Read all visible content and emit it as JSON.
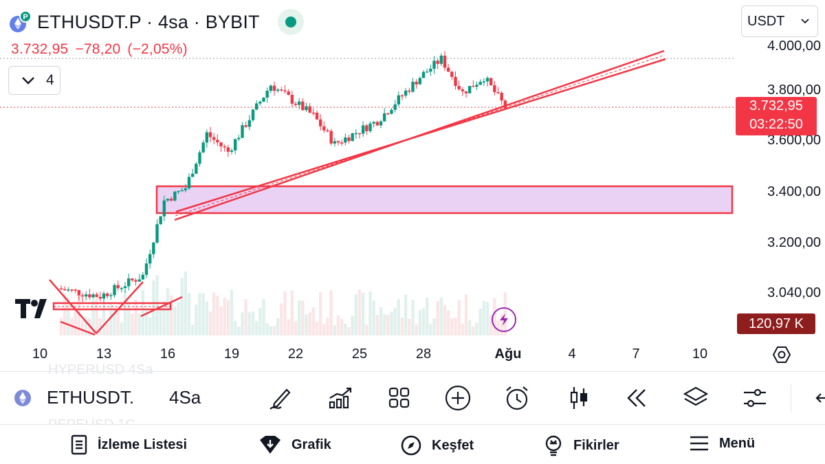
{
  "header": {
    "symbol": "ETHUSDT.P",
    "timeframe": "4sa",
    "exchange": "BYBIT",
    "separator": "·",
    "symbol_icon": "ethereum-icon",
    "status": "market-open-indicator"
  },
  "quote": {
    "last": "3.732,95",
    "change": "−78,20",
    "change_pct": "(−2,05%)",
    "color": "#f23645"
  },
  "indicators_toggle": {
    "count": "4",
    "icon": "chevron-down-icon"
  },
  "currency_select": {
    "value": "USDT",
    "icon": "chevron-down-icon"
  },
  "price_scale": {
    "labels": [
      "4.000,00",
      "3.800,00",
      "3.600,00",
      "3.400,00",
      "3.200,00",
      "3.040,00"
    ],
    "last_price": "3.732,95",
    "countdown": "03:22:50",
    "volume_value": "120,97 K"
  },
  "time_scale": {
    "labels": [
      "10",
      "13",
      "16",
      "19",
      "22",
      "25",
      "28",
      "Ağu",
      "4",
      "7",
      "10"
    ]
  },
  "chart_data": {
    "type": "candlestick",
    "symbol": "ETHUSDT.P",
    "timeframe": "4sa",
    "currency": "USDT",
    "last_price": 3732.95,
    "change": -78.2,
    "change_pct": -2.05,
    "y_range": [
      2930,
      4060
    ],
    "x_range": [
      "2024-07-09",
      "2024-08-11"
    ],
    "grid": false,
    "up_color": "#089981",
    "down_color": "#f23645",
    "approx_key_closes": [
      {
        "date": "2024-07-11",
        "close": 3030
      },
      {
        "date": "2024-07-13",
        "close": 3000
      },
      {
        "date": "2024-07-15",
        "close": 3080
      },
      {
        "date": "2024-07-16",
        "close": 3370
      },
      {
        "date": "2024-07-17",
        "close": 3420
      },
      {
        "date": "2024-07-18",
        "close": 3630
      },
      {
        "date": "2024-07-19",
        "close": 3560
      },
      {
        "date": "2024-07-21",
        "close": 3820
      },
      {
        "date": "2024-07-23",
        "close": 3700
      },
      {
        "date": "2024-07-24",
        "close": 3590
      },
      {
        "date": "2024-07-26",
        "close": 3680
      },
      {
        "date": "2024-07-28",
        "close": 3850
      },
      {
        "date": "2024-07-29",
        "close": 3920
      },
      {
        "date": "2024-07-30",
        "close": 3790
      },
      {
        "date": "2024-07-31",
        "close": 3850
      },
      {
        "date": "2024-08-01",
        "close": 3733
      }
    ],
    "drawings": {
      "zone": {
        "price_low": 3330,
        "price_high": 3425,
        "from": "2024-07-15",
        "to": "right-edge",
        "fill": "#e9d2f4",
        "stroke": "#f23645"
      },
      "trendline": {
        "from": {
          "date": "2024-07-16",
          "price": 3310
        },
        "to": {
          "date": "2024-08-08",
          "price": 3970
        },
        "color": "#f23645"
      }
    }
  },
  "toolbar": {
    "symbol": "ETHUSDT.",
    "timeframe": "4Sa",
    "icons": [
      "drawing-pen-icon",
      "indicators-icon",
      "layout-grid-icon",
      "add-icon",
      "alert-clock-icon",
      "candles-icon",
      "replay-icon",
      "layers-icon",
      "settings-sliders-icon"
    ]
  },
  "bottom_nav": {
    "items": [
      {
        "label": "İzleme Listesi",
        "icon": "watchlist-icon"
      },
      {
        "label": "Grafik",
        "icon": "chart-icon"
      },
      {
        "label": "Keşfet",
        "icon": "compass-icon"
      },
      {
        "label": "Fikirler",
        "icon": "ideas-bulb-icon"
      },
      {
        "label": "Menü",
        "icon": "menu-icon"
      }
    ]
  }
}
